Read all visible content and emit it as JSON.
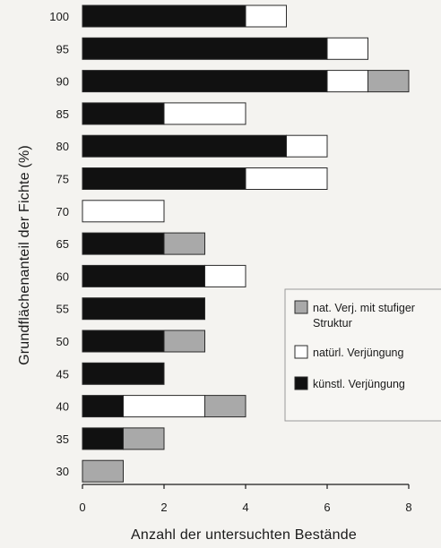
{
  "chart_data": {
    "type": "bar",
    "orientation": "horizontal",
    "stacked": true,
    "title": "",
    "xlabel": "Anzahl der untersuchten Bestände",
    "ylabel": "Grundflächenanteil der Fichte (%)",
    "xlim": [
      0,
      8
    ],
    "xticks": [
      0,
      2,
      4,
      6,
      8
    ],
    "categories": [
      "100",
      "95",
      "90",
      "85",
      "80",
      "75",
      "70",
      "65",
      "60",
      "55",
      "50",
      "45",
      "40",
      "35",
      "30"
    ],
    "series": [
      {
        "name": "künstl. Verjüngung",
        "color": "#111111",
        "values": [
          4,
          6,
          6,
          2,
          5,
          4,
          0,
          2,
          3,
          3,
          2,
          2,
          1,
          1,
          0
        ]
      },
      {
        "name": "natürl. Verjüngung",
        "color": "#ffffff",
        "values": [
          1,
          1,
          1,
          2,
          1,
          2,
          2,
          0,
          1,
          0,
          0,
          0,
          2,
          0,
          0
        ]
      },
      {
        "name": "nat. Verj. mit stufiger Struktur",
        "color": "#a9a9a9",
        "values": [
          0,
          0,
          1,
          0,
          0,
          0,
          0,
          1,
          0,
          0,
          1,
          0,
          1,
          1,
          1
        ]
      }
    ],
    "legend": {
      "placement": "right",
      "order": [
        "nat. Verj. mit stufiger Struktur",
        "natürl. Verjüngung",
        "künstl. Verjüngung"
      ],
      "entries": [
        {
          "line1": "nat. Verj. mit stufiger",
          "line2": "Struktur"
        },
        {
          "line1": "natürl. Verjüngung",
          "line2": ""
        },
        {
          "line1": "künstl. Verjüngung",
          "line2": ""
        }
      ]
    },
    "grid": false
  }
}
